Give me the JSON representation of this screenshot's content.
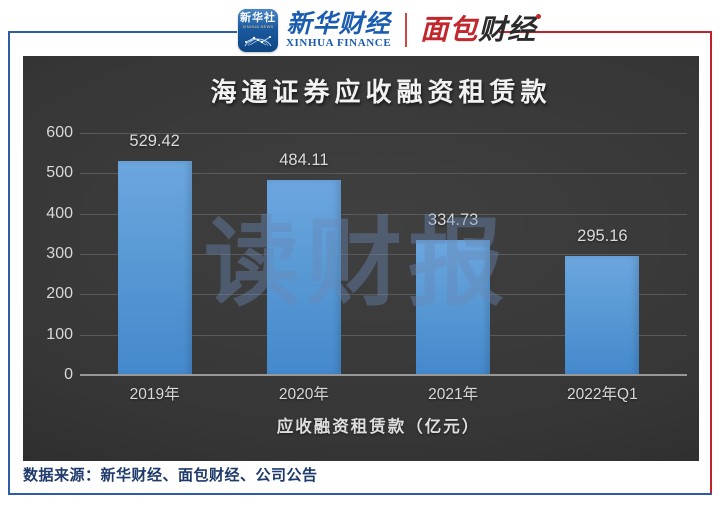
{
  "colors": {
    "frame_blue": "#2e5ca6",
    "frame_red": "#bf2228",
    "xinhua_blue": "#1a5cb0",
    "mianbao_red": "#c1272d",
    "bar_blue": "#5b9bd5",
    "chart_bg": "#363636",
    "footer_navy": "#1f3a6b"
  },
  "header": {
    "xinhua_icon": {
      "line1": "新华社",
      "line2": "XINHUA NEWS"
    },
    "xinhua_finance": {
      "cn": "新华财经",
      "en": "XINHUA FINANCE"
    },
    "mianbao": {
      "part1": "面包",
      "part2": "财经"
    }
  },
  "chart_data": {
    "type": "bar",
    "title": "海通证券应收融资租赁款",
    "categories": [
      "2019年",
      "2020年",
      "2021年",
      "2022年Q1"
    ],
    "values": [
      529.42,
      484.11,
      334.73,
      295.16
    ],
    "labels": [
      "529.42",
      "484.11",
      "334.73",
      "295.16"
    ],
    "xlabel": "应收融资租赁款（亿元）",
    "ylabel": "",
    "ylim": [
      0,
      600
    ],
    "yticks": [
      0,
      100,
      200,
      300,
      400,
      500,
      600
    ],
    "grid": true,
    "legend": false,
    "watermark": "读财报"
  },
  "footer": {
    "source": "数据来源：新华财经、面包财经、公司公告"
  }
}
